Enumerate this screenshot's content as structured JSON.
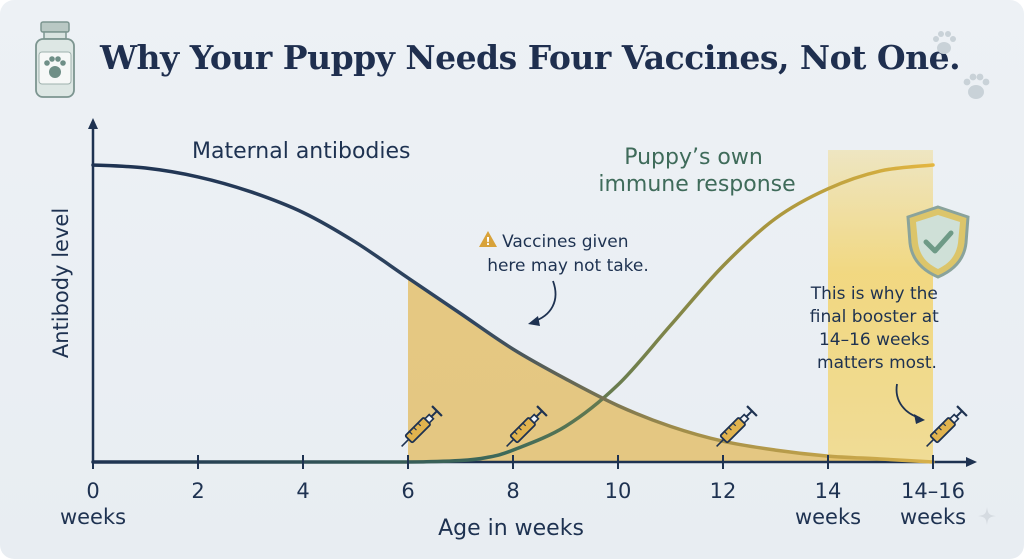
{
  "title": "Why Your Puppy Needs Four Vaccines, Not One.",
  "chart_data": {
    "type": "line",
    "ylabel": "Antibody level",
    "xlabel": "Age in weeks",
    "xlim": [
      0,
      16.5
    ],
    "ylim": [
      0,
      1
    ],
    "x_ticks": [
      {
        "value": 0,
        "label": "0",
        "sublabel": "weeks"
      },
      {
        "value": 2,
        "label": "2",
        "sublabel": ""
      },
      {
        "value": 4,
        "label": "4",
        "sublabel": ""
      },
      {
        "value": 6,
        "label": "6",
        "sublabel": ""
      },
      {
        "value": 8,
        "label": "8",
        "sublabel": ""
      },
      {
        "value": 10,
        "label": "10",
        "sublabel": ""
      },
      {
        "value": 12,
        "label": "12",
        "sublabel": ""
      },
      {
        "value": 14,
        "label": "14",
        "sublabel": "weeks"
      },
      {
        "value": 16,
        "label": "14–16",
        "sublabel": "weeks"
      }
    ],
    "series": [
      {
        "name": "Maternal antibodies",
        "color": "#1e3251",
        "x": [
          0,
          1,
          2,
          3,
          4,
          5,
          6,
          7,
          8,
          9,
          10,
          11,
          12,
          13,
          14,
          15,
          16
        ],
        "y": [
          1.0,
          0.99,
          0.96,
          0.91,
          0.84,
          0.74,
          0.62,
          0.5,
          0.38,
          0.28,
          0.19,
          0.12,
          0.07,
          0.04,
          0.02,
          0.01,
          0.0
        ]
      },
      {
        "name": "Puppy’s own immune response",
        "color": "#3f6b5a",
        "x": [
          0,
          2,
          4,
          6,
          7,
          7.5,
          8,
          9,
          10,
          11,
          12,
          13,
          14,
          15,
          16
        ],
        "y": [
          0.0,
          0.0,
          0.0,
          0.0,
          0.005,
          0.015,
          0.04,
          0.12,
          0.26,
          0.46,
          0.66,
          0.82,
          0.92,
          0.98,
          1.0
        ]
      }
    ],
    "shaded_window": {
      "from": 6,
      "to": 16,
      "label": "Vaccines given here may not take.",
      "color": "#e3bc62"
    },
    "highlight_band": {
      "from": 14,
      "to": 16,
      "color": "#f3d264"
    },
    "vaccine_markers": [
      6,
      8,
      12,
      16
    ],
    "annotations": {
      "warning": "Vaccines given here may not take.",
      "booster": "This is why the final booster at 14–16 weeks matters most."
    }
  },
  "icons": [
    "vaccine-bottle-icon",
    "paw-print-icon",
    "shield-check-icon",
    "syringe-icon",
    "warning-icon",
    "sparkle-icon"
  ]
}
